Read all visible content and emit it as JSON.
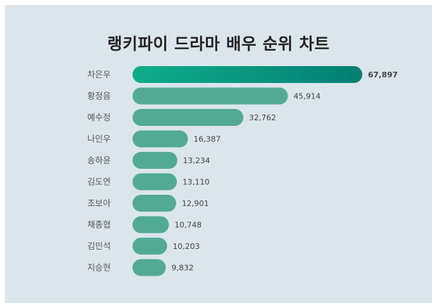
{
  "chart_data": {
    "type": "bar",
    "orientation": "horizontal",
    "title": "랭키파이 드라마 배우 순위 차트",
    "categories": [
      "차은우",
      "황정음",
      "예수정",
      "나인우",
      "송하윤",
      "김도연",
      "조보아",
      "채종협",
      "김민석",
      "지승현"
    ],
    "values": [
      67897,
      45914,
      32762,
      16387,
      13234,
      13110,
      12901,
      10748,
      10203,
      9832
    ],
    "value_labels": [
      "67,897",
      "45,914",
      "32,762",
      "16,387",
      "13,234",
      "13,110",
      "12,901",
      "10,748",
      "10,203",
      "9,832"
    ],
    "xlabel": "",
    "ylabel": "",
    "grid": false,
    "colors": {
      "bar": "#52aa95",
      "top_bar_start": "#0fae8b",
      "top_bar_end": "#037e72",
      "background": "#dbe5ec"
    }
  }
}
